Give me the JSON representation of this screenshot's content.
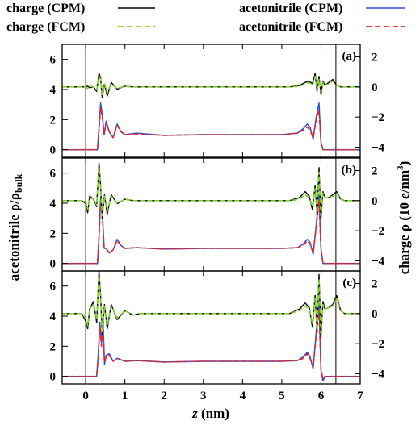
{
  "chart_data": {
    "type": "line",
    "legend": [
      {
        "label": "charge (CPM)",
        "color": "#000000",
        "dash": "solid"
      },
      {
        "label": "charge (FCM)",
        "color": "#7fcf2a",
        "dash": "dashed"
      },
      {
        "label": "acetonitrile (CPM)",
        "color": "#2b50d8",
        "dash": "solid"
      },
      {
        "label": "acetonitrile (FCM)",
        "color": "#e0282a",
        "dash": "dashed"
      }
    ],
    "legend_position": "top",
    "xlabel": "z (nm)",
    "xlabel_italic_part": "z",
    "xlabel_rest": " (nm)",
    "xlim": [
      -0.6,
      7.0
    ],
    "xticks": [
      0,
      1,
      2,
      3,
      4,
      5,
      6,
      7
    ],
    "ylabel_left": "acetonitrile ρ/ρbulk",
    "ylabel_left_main": "acetonitrile ρ/ρ",
    "ylabel_left_sub": "bulk",
    "ylim_left": [
      -0.5,
      7.0
    ],
    "yticks_left": [
      0,
      2,
      4,
      6
    ],
    "ylabel_right": "charge ρ (10 e/nm3)",
    "ylabel_right_main": "charge ρ (10 ",
    "ylabel_right_e": "e",
    "ylabel_right_unit": "/nm",
    "ylabel_right_sup": "3",
    "ylabel_right_close": ")",
    "ylim_right": [
      -4.67,
      2.83
    ],
    "yticks_right": [
      -4,
      -2,
      0,
      2
    ],
    "vlines": [
      0.0,
      6.38
    ],
    "panels": [
      {
        "label": "(a)",
        "charge_CPM": {
          "x": [
            -0.6,
            0.0,
            0.05,
            0.1,
            0.2,
            0.28,
            0.34,
            0.38,
            0.42,
            0.48,
            0.55,
            0.65,
            0.8,
            1.0,
            1.2,
            5.2,
            5.45,
            5.6,
            5.7,
            5.78,
            5.85,
            5.9,
            5.95,
            6.0,
            6.05,
            6.1,
            6.2,
            6.3,
            6.4,
            6.5,
            6.6,
            7.0
          ],
          "y": [
            0.0,
            0.0,
            0.05,
            -0.05,
            0.0,
            -0.3,
            0.9,
            0.6,
            -0.7,
            0.2,
            -0.6,
            0.3,
            -0.15,
            0.05,
            0.0,
            0.0,
            0.1,
            0.3,
            0.4,
            0.2,
            0.9,
            -0.3,
            0.7,
            -0.5,
            0.4,
            0.1,
            0.3,
            0.5,
            0.1,
            0.0,
            0.0,
            0.0
          ]
        },
        "charge_FCM": {
          "x": [
            -0.6,
            0.0,
            0.05,
            0.1,
            0.2,
            0.28,
            0.34,
            0.38,
            0.42,
            0.48,
            0.55,
            0.65,
            0.8,
            1.0,
            1.2,
            5.2,
            5.45,
            5.6,
            5.7,
            5.78,
            5.85,
            5.9,
            5.95,
            6.0,
            6.05,
            6.1,
            6.2,
            6.3,
            6.4,
            6.5,
            6.6,
            7.0
          ],
          "y": [
            0.0,
            0.0,
            -0.1,
            0.05,
            0.0,
            -0.2,
            0.7,
            0.5,
            -0.5,
            0.2,
            -0.4,
            0.2,
            -0.1,
            0.05,
            0.0,
            0.0,
            0.05,
            0.2,
            0.3,
            0.1,
            0.7,
            -0.2,
            0.5,
            -0.3,
            0.3,
            0.1,
            0.2,
            0.4,
            0.1,
            0.0,
            0.0,
            0.0
          ]
        },
        "acn_CPM": {
          "x": [
            -0.6,
            0.3,
            0.34,
            0.38,
            0.42,
            0.47,
            0.52,
            0.6,
            0.7,
            0.8,
            0.9,
            1.0,
            1.3,
            2.0,
            3.0,
            4.0,
            5.0,
            5.4,
            5.55,
            5.65,
            5.72,
            5.8,
            5.88,
            5.95,
            6.0,
            6.05,
            6.1,
            6.2,
            7.0
          ],
          "y": [
            0.0,
            0.0,
            1.5,
            3.1,
            2.4,
            1.0,
            1.9,
            1.2,
            0.8,
            1.7,
            1.2,
            1.0,
            1.1,
            0.95,
            1.0,
            1.0,
            1.0,
            1.1,
            1.4,
            1.7,
            1.5,
            0.7,
            2.2,
            3.1,
            0.5,
            0.0,
            0.0,
            0.0,
            0.0
          ]
        },
        "acn_FCM": {
          "x": [
            -0.6,
            0.3,
            0.34,
            0.38,
            0.42,
            0.47,
            0.52,
            0.6,
            0.7,
            0.8,
            0.9,
            1.0,
            1.3,
            2.0,
            3.0,
            4.0,
            5.0,
            5.4,
            5.55,
            5.65,
            5.72,
            5.8,
            5.88,
            5.95,
            6.0,
            6.05,
            6.1,
            6.2,
            7.0
          ],
          "y": [
            0.0,
            0.0,
            1.3,
            2.8,
            2.2,
            1.0,
            1.8,
            1.2,
            0.8,
            1.6,
            1.2,
            1.0,
            1.05,
            0.95,
            1.0,
            1.0,
            1.0,
            1.1,
            1.3,
            1.5,
            1.3,
            0.8,
            2.0,
            2.6,
            0.5,
            0.0,
            0.0,
            0.0,
            0.0
          ]
        }
      },
      {
        "label": "(b)",
        "charge_CPM": {
          "x": [
            -0.6,
            -0.1,
            0.0,
            0.05,
            0.1,
            0.2,
            0.28,
            0.34,
            0.38,
            0.42,
            0.48,
            0.55,
            0.65,
            0.8,
            1.0,
            1.2,
            5.2,
            5.45,
            5.6,
            5.7,
            5.78,
            5.85,
            5.9,
            5.95,
            6.0,
            6.05,
            6.1,
            6.2,
            6.3,
            6.4,
            6.5,
            6.6,
            7.0
          ],
          "y": [
            0.0,
            0.0,
            -0.2,
            -0.8,
            0.3,
            0.1,
            -0.4,
            2.5,
            0.9,
            -1.2,
            0.4,
            -0.9,
            0.4,
            -0.2,
            0.1,
            0.0,
            0.0,
            0.2,
            0.6,
            0.3,
            -0.6,
            1.0,
            -1.0,
            2.2,
            -1.2,
            0.6,
            0.2,
            0.2,
            0.4,
            0.6,
            0.1,
            0.0,
            0.0
          ]
        },
        "charge_FCM": {
          "x": [
            -0.6,
            -0.1,
            0.0,
            0.05,
            0.1,
            0.2,
            0.28,
            0.34,
            0.38,
            0.42,
            0.48,
            0.55,
            0.65,
            0.8,
            1.0,
            1.2,
            5.2,
            5.45,
            5.6,
            5.7,
            5.78,
            5.85,
            5.9,
            5.95,
            6.0,
            6.05,
            6.1,
            6.2,
            6.3,
            6.4,
            6.5,
            6.6,
            7.0
          ],
          "y": [
            0.0,
            0.0,
            -0.1,
            -0.6,
            0.2,
            0.1,
            -0.3,
            2.2,
            0.8,
            -1.0,
            0.3,
            -0.7,
            0.3,
            -0.2,
            0.1,
            0.0,
            0.0,
            0.1,
            0.4,
            0.2,
            -0.4,
            0.8,
            -0.8,
            1.9,
            -1.0,
            0.5,
            0.2,
            0.2,
            0.3,
            0.5,
            0.1,
            0.0,
            0.0
          ]
        },
        "acn_CPM": {
          "x": [
            -0.6,
            0.3,
            0.34,
            0.38,
            0.42,
            0.47,
            0.52,
            0.6,
            0.7,
            0.8,
            0.9,
            1.0,
            1.3,
            2.0,
            3.0,
            4.0,
            5.0,
            5.4,
            5.55,
            5.65,
            5.72,
            5.8,
            5.88,
            5.95,
            6.0,
            6.05,
            6.1,
            6.2,
            7.0
          ],
          "y": [
            0.0,
            0.0,
            1.8,
            4.4,
            3.6,
            1.0,
            1.0,
            0.7,
            0.9,
            1.6,
            1.2,
            1.0,
            1.05,
            0.95,
            1.0,
            1.0,
            1.0,
            1.05,
            1.3,
            1.6,
            1.4,
            0.6,
            2.6,
            4.6,
            1.0,
            0.0,
            0.0,
            0.0,
            0.0
          ]
        },
        "acn_FCM": {
          "x": [
            -0.6,
            0.3,
            0.34,
            0.38,
            0.42,
            0.47,
            0.52,
            0.6,
            0.7,
            0.8,
            0.9,
            1.0,
            1.3,
            2.0,
            3.0,
            4.0,
            5.0,
            5.4,
            5.55,
            5.65,
            5.72,
            5.8,
            5.88,
            5.95,
            6.0,
            6.05,
            6.1,
            6.2,
            7.0
          ],
          "y": [
            0.0,
            0.0,
            1.6,
            4.1,
            3.4,
            1.0,
            1.0,
            0.7,
            0.9,
            1.5,
            1.2,
            1.0,
            1.05,
            0.95,
            1.0,
            1.0,
            1.0,
            1.05,
            1.2,
            1.5,
            1.3,
            0.7,
            2.4,
            4.2,
            0.9,
            0.0,
            0.0,
            0.0,
            0.0
          ]
        }
      },
      {
        "label": "(c)",
        "charge_CPM": {
          "x": [
            -0.6,
            -0.1,
            0.0,
            0.05,
            0.1,
            0.2,
            0.28,
            0.34,
            0.38,
            0.42,
            0.48,
            0.55,
            0.65,
            0.8,
            1.0,
            1.2,
            1.4,
            5.2,
            5.45,
            5.6,
            5.7,
            5.78,
            5.85,
            5.9,
            5.95,
            6.0,
            6.05,
            6.1,
            6.2,
            6.3,
            6.4,
            6.5,
            6.6,
            7.0
          ],
          "y": [
            0.0,
            0.0,
            -0.5,
            -1.0,
            0.3,
            0.8,
            -0.6,
            2.8,
            1.2,
            -1.4,
            0.6,
            -1.0,
            0.6,
            -0.4,
            0.2,
            -0.1,
            0.0,
            0.0,
            0.3,
            0.7,
            0.4,
            -0.9,
            1.2,
            -1.3,
            2.6,
            -1.6,
            0.8,
            0.3,
            0.4,
            0.6,
            1.2,
            0.2,
            0.0,
            0.0
          ]
        },
        "charge_FCM": {
          "x": [
            -0.6,
            -0.1,
            0.0,
            0.05,
            0.1,
            0.2,
            0.28,
            0.34,
            0.38,
            0.42,
            0.48,
            0.55,
            0.65,
            0.8,
            1.0,
            1.2,
            1.4,
            5.2,
            5.45,
            5.6,
            5.7,
            5.78,
            5.85,
            5.9,
            5.95,
            6.0,
            6.05,
            6.1,
            6.2,
            6.3,
            6.4,
            6.5,
            6.6,
            7.0
          ],
          "y": [
            0.0,
            0.0,
            -0.3,
            -0.8,
            0.3,
            0.6,
            -0.4,
            2.5,
            1.0,
            -1.2,
            0.5,
            -0.8,
            0.5,
            -0.3,
            0.2,
            -0.1,
            0.0,
            0.0,
            0.2,
            0.5,
            0.3,
            -0.7,
            1.0,
            -1.1,
            2.3,
            -1.3,
            0.6,
            0.3,
            0.4,
            0.5,
            1.0,
            0.2,
            0.0,
            0.0
          ]
        },
        "acn_CPM": {
          "x": [
            -0.6,
            0.28,
            0.32,
            0.36,
            0.4,
            0.44,
            0.48,
            0.52,
            0.6,
            0.7,
            0.8,
            0.9,
            1.0,
            1.3,
            2.0,
            3.0,
            4.0,
            5.0,
            5.4,
            5.55,
            5.65,
            5.72,
            5.8,
            5.88,
            5.95,
            6.0,
            6.05,
            6.1,
            6.2,
            7.0
          ],
          "y": [
            0.0,
            0.0,
            1.5,
            3.6,
            2.2,
            3.8,
            0.8,
            1.4,
            1.5,
            1.0,
            1.2,
            1.1,
            1.0,
            1.05,
            0.95,
            1.0,
            1.0,
            1.0,
            1.05,
            1.3,
            1.6,
            1.3,
            0.5,
            3.0,
            4.8,
            0.4,
            -0.3,
            0.0,
            0.0,
            0.0
          ]
        },
        "acn_FCM": {
          "x": [
            -0.6,
            0.28,
            0.32,
            0.36,
            0.4,
            0.44,
            0.48,
            0.52,
            0.6,
            0.7,
            0.8,
            0.9,
            1.0,
            1.3,
            2.0,
            3.0,
            4.0,
            5.0,
            5.4,
            5.55,
            5.65,
            5.72,
            5.8,
            5.88,
            5.95,
            6.0,
            6.05,
            6.1,
            6.2,
            7.0
          ],
          "y": [
            0.0,
            0.0,
            1.3,
            3.3,
            2.0,
            3.5,
            0.9,
            1.3,
            1.4,
            1.0,
            1.2,
            1.1,
            1.0,
            1.05,
            0.95,
            1.0,
            1.0,
            1.0,
            1.05,
            1.2,
            1.5,
            1.2,
            0.6,
            2.8,
            4.4,
            0.5,
            -0.2,
            0.0,
            0.0,
            0.0
          ]
        }
      }
    ]
  }
}
